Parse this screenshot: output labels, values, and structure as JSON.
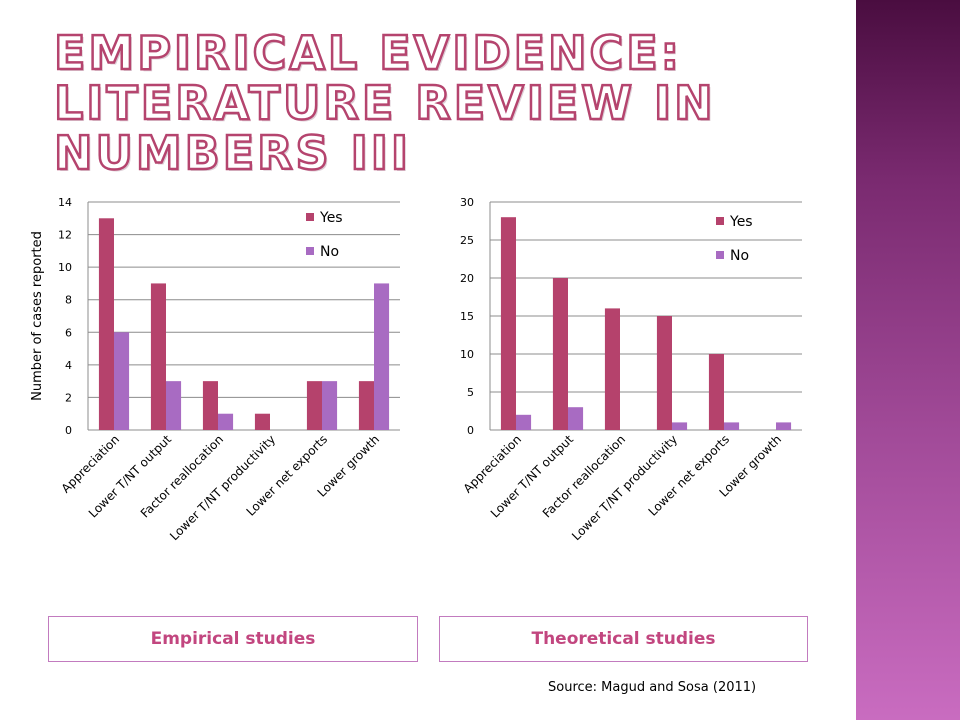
{
  "title": {
    "line1": "Empirical evidence:",
    "line2": "literature review in numbers III"
  },
  "colors": {
    "yes": "#b5426c",
    "no": "#a86bc2",
    "title_outline": "#b5446e",
    "caption_text": "#c2467f",
    "caption_border": "#c27bbf",
    "side_band": "#7a2a70"
  },
  "chart_data": [
    {
      "type": "bar",
      "categories": [
        "Appreciation",
        "Lower T/NT output",
        "Factor reallocation",
        "Lower T/NT productivity",
        "Lower net exports",
        "Lower growth"
      ],
      "series": [
        {
          "name": "Yes",
          "values": [
            13,
            9,
            3,
            1,
            3,
            3
          ]
        },
        {
          "name": "No",
          "values": [
            6,
            3,
            1,
            0,
            3,
            9
          ]
        }
      ],
      "ylabel": "Number of cases reported",
      "ylim": [
        0,
        14
      ],
      "yticks": [
        0,
        2,
        4,
        6,
        8,
        10,
        12,
        14
      ],
      "grid": true,
      "legend": "top-right"
    },
    {
      "type": "bar",
      "categories": [
        "Appreciation",
        "Lower T/NT output",
        "Factor reallocation",
        "Lower T/NT productivity",
        "Lower net exports",
        "Lower growth"
      ],
      "series": [
        {
          "name": "Yes",
          "values": [
            28,
            20,
            16,
            15,
            10,
            0
          ]
        },
        {
          "name": "No",
          "values": [
            2,
            3,
            0,
            1,
            1,
            1
          ]
        }
      ],
      "ylabel": "",
      "ylim": [
        0,
        30
      ],
      "yticks": [
        0,
        5,
        10,
        15,
        20,
        25,
        30
      ],
      "grid": true,
      "legend": "top-right"
    }
  ],
  "captions": {
    "left": "Empirical studies",
    "right": "Theoretical studies"
  },
  "source": "Source: Magud and Sosa (2011)"
}
